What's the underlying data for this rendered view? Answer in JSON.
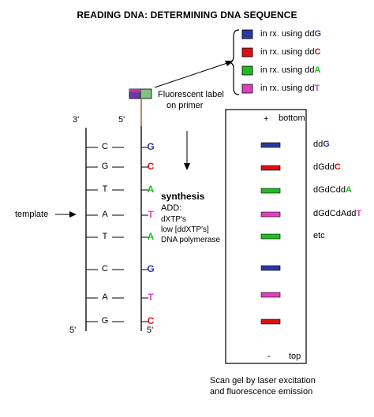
{
  "title": "READING DNA:  DETERMINING DNA SEQUENCE",
  "colors": {
    "G": "#2b3a9e",
    "C": "#dd1111",
    "A": "#22bb22",
    "T": "#e040c0",
    "copper": "#b06a30"
  },
  "legend": [
    {
      "base": "G",
      "prefix": "in rx. using dd",
      "letter": "G"
    },
    {
      "base": "C",
      "prefix": "in rx. using dd",
      "letter": "C"
    },
    {
      "base": "A",
      "prefix": "in rx. using dd",
      "letter": "A"
    },
    {
      "base": "T",
      "prefix": "in rx. using dd",
      "letter": "T"
    }
  ],
  "label_text": {
    "line1": "Fluorescent label",
    "line2": "on primer"
  },
  "strand_labels": {
    "template_3": "3'",
    "template_5": "5'",
    "new_5_top": "5'",
    "new_3_bottom": "5'"
  },
  "template_label": "template",
  "template_bases": [
    "C",
    "G",
    "T",
    "A",
    "T",
    "C",
    "A",
    "G"
  ],
  "new_bases": [
    "G",
    "C",
    "A",
    "T",
    "A",
    "G",
    "T",
    "C"
  ],
  "synthesis": {
    "heading": "synthesis",
    "add": "ADD:",
    "line1": "dXTP's",
    "line2": "low [ddXTP's]",
    "line3": "DNA polymerase"
  },
  "gel": {
    "plus": "+",
    "bottom": "bottom",
    "minus": "-",
    "top": "top",
    "bands": [
      {
        "base": "G",
        "label_prefix": "dd",
        "label_end": "G"
      },
      {
        "base": "C",
        "label_prefix": "dGdd",
        "label_end": "C"
      },
      {
        "base": "A",
        "label_prefix": "dGdCdd",
        "label_end": "A"
      },
      {
        "base": "T",
        "label_prefix": "dGdCdAdd",
        "label_end": "T"
      },
      {
        "base": "A",
        "label_prefix": "etc",
        "label_end": ""
      },
      {
        "base": "G",
        "label_prefix": "",
        "label_end": ""
      },
      {
        "base": "T",
        "label_prefix": "",
        "label_end": ""
      },
      {
        "base": "C",
        "label_prefix": "",
        "label_end": ""
      }
    ]
  },
  "caption": {
    "line1": "Scan gel by laser excitation",
    "line2": "and fluorescence emission"
  }
}
